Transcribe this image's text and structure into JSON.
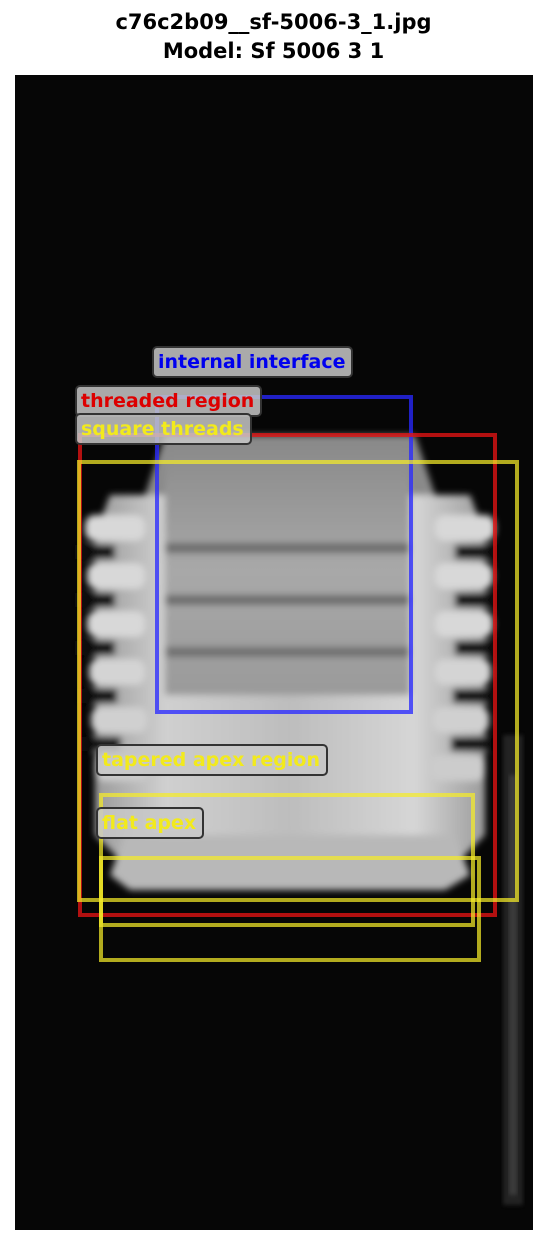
{
  "figure": {
    "title_line1": "c76c2b09__sf-5006-3_1.jpg",
    "title_line2": "Model: Sf 5006 3 1"
  },
  "colors": {
    "blue": "#0000ee",
    "red": "#dd0000",
    "yellow": "#f2ea1c"
  },
  "annotations": [
    {
      "label": "internal interface",
      "color": "blue"
    },
    {
      "label": "threaded region",
      "color": "red"
    },
    {
      "label": "square threads",
      "color": "yellow"
    },
    {
      "label": "tapered apex region",
      "color": "yellow"
    },
    {
      "label": "flat apex",
      "color": "yellow"
    }
  ]
}
